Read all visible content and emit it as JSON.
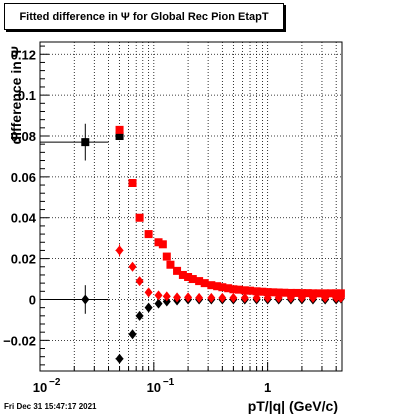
{
  "title": "Fitted difference in  Ψ  for Global Rec Pion EtapT",
  "footer": "Fri Dec 31 15:47:17 2021",
  "chart_data": {
    "type": "scatter",
    "title": "Fitted difference in  Ψ  for Global Rec Pion EtapT",
    "xlabel": "pT/|q| (GeV/c)",
    "ylabel": "difference in Ψ",
    "xscale": "log",
    "xlim": [
      0.01,
      4.5
    ],
    "ylim": [
      -0.035,
      0.126
    ],
    "grid": true,
    "x_tick_labels": [
      {
        "value": 0.01,
        "label": "10",
        "exp": "−2"
      },
      {
        "value": 0.1,
        "label": "10",
        "exp": "−1"
      },
      {
        "value": 1,
        "label": "1",
        "exp": ""
      }
    ],
    "y_ticks": [
      -0.02,
      0,
      0.02,
      0.04,
      0.06,
      0.08,
      0.1,
      0.12
    ],
    "y_tick_labels": [
      "−0.02",
      "0",
      "0.02",
      "0.04",
      "0.06",
      "0.08",
      "0.1",
      "0.12"
    ],
    "series": [
      {
        "color": "#000000",
        "marker": "square",
        "x": [
          0.025,
          0.05
        ],
        "y": [
          0.077,
          0.08
        ],
        "xerr": [
          0.015,
          0.004
        ],
        "yerr": [
          0.009,
          0.002
        ]
      },
      {
        "color": "#ff0000",
        "marker": "square",
        "x": [
          0.05,
          0.065,
          0.075,
          0.09,
          0.11,
          0.12,
          0.13,
          0.14,
          0.16,
          0.18,
          0.2,
          0.22,
          0.25,
          0.28,
          0.32,
          0.36,
          0.4,
          0.45,
          0.5,
          0.56,
          0.63,
          0.7,
          0.8,
          0.9,
          1.0,
          1.12,
          1.25,
          1.4,
          1.6,
          1.8,
          2.0,
          2.25,
          2.5,
          2.8,
          3.2,
          3.6,
          4.0,
          4.4
        ],
        "y": [
          0.083,
          0.057,
          0.04,
          0.032,
          0.028,
          0.027,
          0.021,
          0.017,
          0.014,
          0.012,
          0.011,
          0.01,
          0.009,
          0.008,
          0.007,
          0.0065,
          0.006,
          0.0055,
          0.005,
          0.0048,
          0.0045,
          0.0043,
          0.004,
          0.0038,
          0.0036,
          0.0035,
          0.0034,
          0.0033,
          0.0032,
          0.0032,
          0.0031,
          0.0031,
          0.003,
          0.003,
          0.003,
          0.003,
          0.003,
          0.003
        ]
      },
      {
        "color": "#000000",
        "marker": "diamond",
        "x": [
          0.025,
          0.05,
          0.065,
          0.075,
          0.09,
          0.11,
          0.13,
          0.16,
          0.2,
          0.25,
          0.32,
          0.4,
          0.5,
          0.63,
          0.8,
          1.0,
          1.25,
          1.6,
          2.0,
          2.5,
          3.2,
          4.0,
          4.4
        ],
        "y": [
          0.0,
          -0.029,
          -0.017,
          -0.008,
          -0.004,
          -0.002,
          -0.001,
          -0.0005,
          0.0,
          0.0,
          0.0,
          0.0,
          0.0,
          0.0,
          0.0,
          0.0,
          0.0,
          0.0,
          0.0,
          0.0,
          0.0,
          0.0,
          0.0005
        ],
        "xerr": [
          0.015,
          0.004,
          0.003,
          0,
          0,
          0,
          0,
          0,
          0,
          0,
          0,
          0,
          0,
          0,
          0,
          0,
          0,
          0,
          0,
          0,
          0,
          0,
          0
        ],
        "yerr": [
          0.007,
          0.002,
          0.002,
          0,
          0,
          0,
          0,
          0,
          0,
          0,
          0,
          0,
          0,
          0,
          0,
          0,
          0,
          0,
          0,
          0,
          0,
          0,
          0
        ]
      },
      {
        "color": "#ff0000",
        "marker": "diamond",
        "x": [
          0.05,
          0.065,
          0.075,
          0.09,
          0.11,
          0.13,
          0.16,
          0.2,
          0.25,
          0.32,
          0.4,
          0.5,
          0.63,
          0.8,
          1.0,
          1.25,
          1.6,
          2.0,
          2.5,
          3.2,
          4.0,
          4.4
        ],
        "y": [
          0.024,
          0.016,
          0.009,
          0.0035,
          0.002,
          0.0015,
          0.001,
          0.001,
          0.0008,
          0.0008,
          0.0008,
          0.0008,
          0.0008,
          0.0008,
          0.0008,
          0.0008,
          0.0008,
          0.0008,
          0.0008,
          0.0008,
          0.0008,
          0.0008
        ],
        "xerr": [
          0.004,
          0,
          0,
          0,
          0,
          0,
          0,
          0,
          0,
          0,
          0,
          0,
          0,
          0,
          0,
          0,
          0,
          0,
          0,
          0,
          0,
          0
        ],
        "yerr": [
          0.003,
          0,
          0,
          0,
          0,
          0,
          0,
          0,
          0,
          0,
          0,
          0,
          0,
          0,
          0,
          0,
          0,
          0,
          0,
          0,
          0,
          0
        ]
      }
    ]
  }
}
